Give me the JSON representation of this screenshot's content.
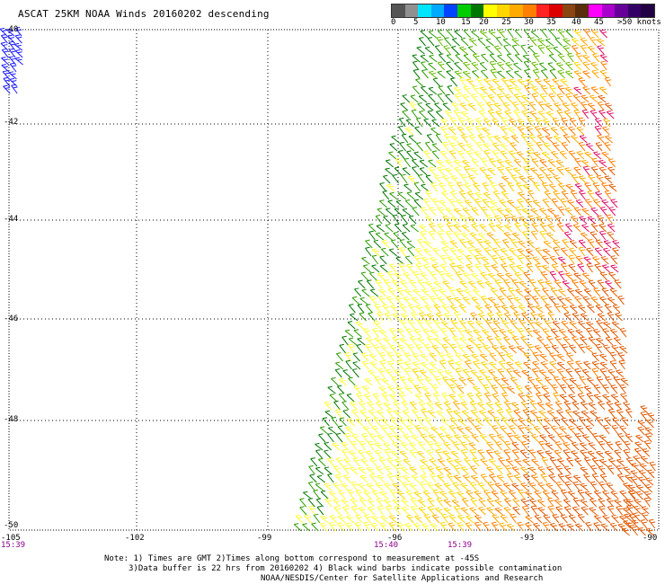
{
  "title": "ASCAT 25KM NOAA Winds 20160202 descending",
  "color_scale": {
    "labels": [
      "0",
      "5",
      "10",
      "15",
      "20",
      "25",
      "30",
      "35",
      "40",
      "45",
      ">50 knots"
    ],
    "colors": [
      "#555555",
      "#909090",
      "#00e5ff",
      "#00aaff",
      "#0044ff",
      "#00cc00",
      "#007700",
      "#ffff00",
      "#ffd700",
      "#ffaa00",
      "#ff7f00",
      "#ff2222",
      "#dd0000",
      "#8b4513",
      "#5a2d0c",
      "#ff00ff",
      "#aa00cc",
      "#660099",
      "#330066",
      "#220044"
    ]
  },
  "map": {
    "lat_labels": [
      "-40",
      "-42",
      "-44",
      "-46",
      "-48",
      "-50"
    ],
    "lon_labels": [
      "-105",
      "-102",
      "-99",
      "-96",
      "-93",
      "-90"
    ],
    "time_labels": [
      "15:39",
      "15:40",
      "15:39"
    ]
  },
  "notes": {
    "line1": "Note: 1) Times are GMT 2)Times along bottom correspond to measurement at -45S",
    "line2": "3)Data buffer is 22 hrs from 20160202 4) Black wind barbs indicate possible contamination",
    "credit": "NOAA/NESDIS/Center for Satellite Applications and Research"
  }
}
